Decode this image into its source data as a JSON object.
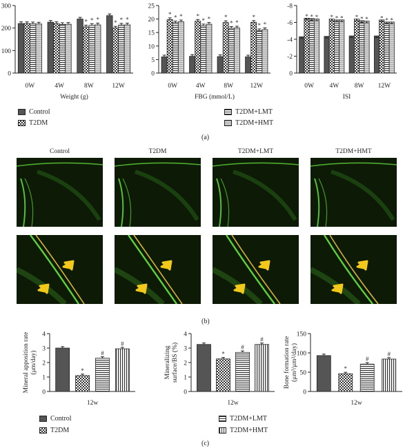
{
  "panel_labels": {
    "a": "(a)",
    "b": "(b)",
    "c": "(c)"
  },
  "groups": [
    "Control",
    "T2DM",
    "T2DM+LMT",
    "T2DM+HMT"
  ],
  "legend_a": [
    "Control",
    "T2DM",
    "T2DM+LMT",
    "T2DM+HMT"
  ],
  "legend_c": [
    "Control",
    "T2DM",
    "T2DM+LMT",
    "T2DM+HMT"
  ],
  "micro_columns": [
    "Control",
    "T2DM",
    "T2DM+LMT",
    "T2DM+HMT"
  ],
  "colors": {
    "axis": "#222222",
    "tissue_bg": "#0c1a06",
    "tissue_line": "#5fd13a",
    "arrow": "#f2c81b"
  },
  "chart_data": [
    {
      "type": "bar",
      "xlabel": "Weight (g)",
      "categories": [
        "0W",
        "4W",
        "8W",
        "12W"
      ],
      "ylim": [
        0,
        300
      ],
      "yticks": [
        0,
        100,
        200,
        300
      ],
      "series": [
        {
          "name": "Control",
          "values": [
            220,
            226,
            240,
            255
          ]
        },
        {
          "name": "T2DM",
          "values": [
            220,
            220,
            205,
            200
          ]
        },
        {
          "name": "T2DM+LMT",
          "values": [
            219,
            216,
            212,
            213
          ]
        },
        {
          "name": "T2DM+HMT",
          "values": [
            218,
            217,
            214,
            214
          ]
        }
      ],
      "annotations": [
        {
          "category": "8W",
          "series": "T2DM",
          "text": "*"
        },
        {
          "category": "8W",
          "series": "T2DM+LMT",
          "text": "*"
        },
        {
          "category": "8W",
          "series": "T2DM+HMT",
          "text": "*"
        },
        {
          "category": "12W",
          "series": "T2DM",
          "text": "*"
        },
        {
          "category": "12W",
          "series": "T2DM+LMT",
          "text": "*"
        },
        {
          "category": "12W",
          "series": "T2DM+HMT",
          "text": "*"
        }
      ]
    },
    {
      "type": "bar",
      "xlabel": "FBG (mmol/L)",
      "categories": [
        "0W",
        "4W",
        "8W",
        "12W"
      ],
      "ylim": [
        0,
        25
      ],
      "yticks": [
        0,
        5,
        10,
        15,
        20,
        25
      ],
      "series": [
        {
          "name": "Control",
          "values": [
            6.0,
            6.2,
            6.1,
            6.0
          ]
        },
        {
          "name": "T2DM",
          "values": [
            19.8,
            19.2,
            18.7,
            18.8
          ]
        },
        {
          "name": "T2DM+LMT",
          "values": [
            18.6,
            17.5,
            16.6,
            15.7
          ]
        },
        {
          "name": "T2DM+HMT",
          "values": [
            19.0,
            18.1,
            16.7,
            16.1
          ]
        }
      ],
      "annotations": [
        {
          "category": "0W",
          "series": "T2DM",
          "text": "*"
        },
        {
          "category": "0W",
          "series": "T2DM+LMT",
          "text": "*"
        },
        {
          "category": "0W",
          "series": "T2DM+HMT",
          "text": "*"
        },
        {
          "category": "4W",
          "series": "T2DM",
          "text": "*"
        },
        {
          "category": "4W",
          "series": "T2DM+LMT",
          "text": "*"
        },
        {
          "category": "4W",
          "series": "T2DM+HMT",
          "text": "*"
        },
        {
          "category": "8W",
          "series": "T2DM",
          "text": "*"
        },
        {
          "category": "8W",
          "series": "T2DM+LMT",
          "text": "*"
        },
        {
          "category": "8W",
          "series": "T2DM+HMT",
          "text": "*"
        },
        {
          "category": "12W",
          "series": "T2DM",
          "text": "*"
        },
        {
          "category": "12W",
          "series": "T2DM+LMT",
          "text": "*"
        },
        {
          "category": "12W",
          "series": "T2DM+HMT",
          "text": "*"
        }
      ]
    },
    {
      "type": "bar",
      "xlabel": "ISI",
      "inverted_y": true,
      "categories": [
        "0W",
        "4W",
        "8W",
        "12W"
      ],
      "ylim": [
        0,
        -8
      ],
      "yticks": [
        0,
        -2,
        -4,
        -6,
        -8
      ],
      "series": [
        {
          "name": "Control",
          "values": [
            -4.3,
            -4.35,
            -4.4,
            -4.4
          ]
        },
        {
          "name": "T2DM",
          "values": [
            -6.5,
            -6.4,
            -6.4,
            -6.3
          ]
        },
        {
          "name": "T2DM+LMT",
          "values": [
            -6.45,
            -6.3,
            -6.2,
            -6.05
          ]
        },
        {
          "name": "T2DM+HMT",
          "values": [
            -6.4,
            -6.3,
            -6.15,
            -6.05
          ]
        }
      ],
      "annotations": [
        {
          "category": "0W",
          "series": "T2DM",
          "text": "*"
        },
        {
          "category": "0W",
          "series": "T2DM+LMT",
          "text": "*"
        },
        {
          "category": "0W",
          "series": "T2DM+HMT",
          "text": "*"
        },
        {
          "category": "4W",
          "series": "T2DM",
          "text": "*"
        },
        {
          "category": "4W",
          "series": "T2DM+LMT",
          "text": "*"
        },
        {
          "category": "4W",
          "series": "T2DM+HMT",
          "text": "*"
        },
        {
          "category": "8W",
          "series": "T2DM",
          "text": "*"
        },
        {
          "category": "8W",
          "series": "T2DM+LMT",
          "text": "*"
        },
        {
          "category": "8W",
          "series": "T2DM+HMT",
          "text": "*"
        },
        {
          "category": "12W",
          "series": "T2DM",
          "text": "*"
        },
        {
          "category": "12W",
          "series": "T2DM+LMT",
          "text": "*"
        },
        {
          "category": "12W",
          "series": "T2DM+HMT",
          "text": "*"
        }
      ]
    },
    {
      "type": "bar",
      "xlabel": "12w",
      "ylabel_lines": [
        "Mineral apposition rate",
        "(μm/day)"
      ],
      "categories": [
        "12w"
      ],
      "ylim": [
        0,
        4
      ],
      "yticks": [
        0,
        1,
        2,
        3,
        4
      ],
      "series": [
        {
          "name": "Control",
          "values": [
            3.0
          ]
        },
        {
          "name": "T2DM",
          "values": [
            1.1
          ]
        },
        {
          "name": "T2DM+LMT",
          "values": [
            2.3
          ]
        },
        {
          "name": "T2DM+HMT",
          "values": [
            2.95
          ]
        }
      ],
      "annotations": [
        {
          "series": "T2DM",
          "text": "*"
        },
        {
          "series": "T2DM+LMT",
          "text": "#"
        },
        {
          "series": "T2DM+HMT",
          "text": "#"
        }
      ]
    },
    {
      "type": "bar",
      "xlabel": "12w",
      "ylabel_lines": [
        "Mineralizing",
        "surface/BS (%)"
      ],
      "categories": [
        "12w"
      ],
      "ylim": [
        0,
        4
      ],
      "yticks": [
        0,
        1,
        2,
        3,
        4
      ],
      "series": [
        {
          "name": "Control",
          "values": [
            3.25
          ]
        },
        {
          "name": "T2DM",
          "values": [
            2.25
          ]
        },
        {
          "name": "T2DM+LMT",
          "values": [
            2.7
          ]
        },
        {
          "name": "T2DM+HMT",
          "values": [
            3.25
          ]
        }
      ],
      "annotations": [
        {
          "series": "T2DM",
          "text": "*"
        },
        {
          "series": "T2DM+LMT",
          "text": "#"
        },
        {
          "series": "T2DM+HMT",
          "text": "#"
        }
      ]
    },
    {
      "type": "bar",
      "xlabel": "12w",
      "ylabel_lines": [
        "Bone formation rate",
        "(μm³/μm²/day)"
      ],
      "categories": [
        "12w"
      ],
      "ylim": [
        0,
        150
      ],
      "yticks": [
        0,
        50,
        100,
        150
      ],
      "series": [
        {
          "name": "Control",
          "values": [
            93
          ]
        },
        {
          "name": "T2DM",
          "values": [
            46
          ]
        },
        {
          "name": "T2DM+LMT",
          "values": [
            71
          ]
        },
        {
          "name": "T2DM+HMT",
          "values": [
            84
          ]
        }
      ],
      "annotations": [
        {
          "series": "T2DM",
          "text": "*"
        },
        {
          "series": "T2DM+LMT",
          "text": "#"
        },
        {
          "series": "T2DM+HMT",
          "text": "#"
        }
      ]
    }
  ]
}
